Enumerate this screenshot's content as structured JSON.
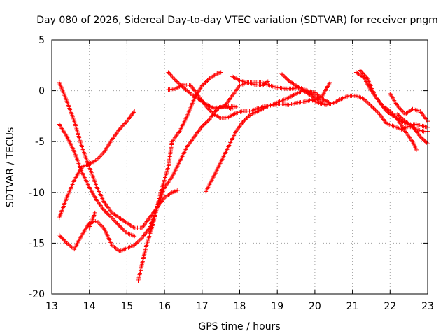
{
  "chart_data": {
    "type": "scatter",
    "title": "Day 080 of 2026, Sidereal Day-to-day VTEC variation (SDTVAR) for receiver pngm",
    "xlabel": "GPS time / hours",
    "ylabel": "SDTVAR / TECUs",
    "xlim": [
      13,
      23
    ],
    "ylim": [
      -20,
      5
    ],
    "xticks": [
      13,
      14,
      15,
      16,
      17,
      18,
      19,
      20,
      21,
      22,
      23
    ],
    "yticks": [
      5,
      0,
      -5,
      -10,
      -15,
      -20
    ],
    "grid": true,
    "marker": "plus",
    "color": "#ff0000",
    "series": [
      {
        "points": [
          [
            13.2,
            0.8
          ],
          [
            13.4,
            -1.0
          ],
          [
            13.6,
            -3.0
          ],
          [
            13.8,
            -5.5
          ],
          [
            14.0,
            -7.5
          ],
          [
            14.2,
            -9.5
          ],
          [
            14.4,
            -11.0
          ],
          [
            14.6,
            -12.0
          ],
          [
            14.8,
            -12.5
          ],
          [
            15.0,
            -13.0
          ],
          [
            15.2,
            -13.5
          ],
          [
            15.4,
            -13.5
          ],
          [
            15.6,
            -12.5
          ],
          [
            15.8,
            -11.5
          ],
          [
            16.0,
            -10.5
          ],
          [
            16.2,
            -10.0
          ],
          [
            16.35,
            -9.8
          ]
        ]
      },
      {
        "points": [
          [
            13.2,
            -3.3
          ],
          [
            13.4,
            -4.5
          ],
          [
            13.6,
            -6.0
          ],
          [
            13.8,
            -8.0
          ],
          [
            14.0,
            -9.5
          ],
          [
            14.2,
            -10.8
          ],
          [
            14.4,
            -11.8
          ],
          [
            14.6,
            -12.5
          ],
          [
            14.8,
            -13.3
          ],
          [
            15.0,
            -14.0
          ],
          [
            15.2,
            -14.3
          ]
        ]
      },
      {
        "points": [
          [
            13.2,
            -12.5
          ],
          [
            13.4,
            -10.5
          ],
          [
            13.6,
            -8.8
          ],
          [
            13.8,
            -7.5
          ],
          [
            14.0,
            -7.2
          ],
          [
            14.2,
            -6.8
          ],
          [
            14.4,
            -6.0
          ],
          [
            14.6,
            -4.8
          ],
          [
            14.8,
            -3.8
          ],
          [
            15.0,
            -3.0
          ],
          [
            15.2,
            -2.0
          ]
        ]
      },
      {
        "points": [
          [
            13.2,
            -14.2
          ],
          [
            13.4,
            -15.0
          ],
          [
            13.6,
            -15.6
          ],
          [
            13.8,
            -14.2
          ],
          [
            14.0,
            -13.0
          ],
          [
            14.2,
            -12.8
          ],
          [
            14.4,
            -13.6
          ],
          [
            14.6,
            -15.2
          ],
          [
            14.8,
            -15.8
          ],
          [
            15.0,
            -15.5
          ],
          [
            15.2,
            -15.2
          ],
          [
            15.4,
            -14.5
          ],
          [
            15.6,
            -13.5
          ],
          [
            15.7,
            -12.5
          ]
        ]
      },
      {
        "points": [
          [
            14.0,
            -13.5
          ],
          [
            14.1,
            -12.5
          ],
          [
            14.15,
            -12.0
          ]
        ]
      },
      {
        "points": [
          [
            15.3,
            -18.7
          ],
          [
            15.5,
            -15.5
          ],
          [
            15.7,
            -13.0
          ],
          [
            15.9,
            -10.0
          ],
          [
            16.1,
            -7.5
          ],
          [
            16.2,
            -5.0
          ],
          [
            16.4,
            -4.0
          ],
          [
            16.6,
            -2.5
          ],
          [
            16.8,
            -0.7
          ],
          [
            17.0,
            0.5
          ],
          [
            17.2,
            1.2
          ],
          [
            17.4,
            1.7
          ],
          [
            17.5,
            1.8
          ]
        ]
      },
      {
        "points": [
          [
            15.6,
            -14.0
          ],
          [
            15.8,
            -11.5
          ],
          [
            16.0,
            -9.5
          ],
          [
            16.2,
            -8.5
          ],
          [
            16.4,
            -7.0
          ],
          [
            16.6,
            -5.5
          ],
          [
            16.8,
            -4.5
          ],
          [
            17.0,
            -3.5
          ],
          [
            17.2,
            -2.8
          ],
          [
            17.4,
            -1.8
          ],
          [
            17.6,
            -1.5
          ],
          [
            17.8,
            -1.8
          ]
        ]
      },
      {
        "points": [
          [
            16.1,
            0.1
          ],
          [
            16.3,
            0.2
          ],
          [
            16.5,
            0.6
          ],
          [
            16.7,
            0.5
          ],
          [
            16.9,
            -0.5
          ],
          [
            17.1,
            -1.5
          ],
          [
            17.3,
            -2.3
          ],
          [
            17.5,
            -2.7
          ],
          [
            17.7,
            -2.6
          ],
          [
            17.9,
            -2.2
          ],
          [
            18.1,
            -2.0
          ],
          [
            18.3,
            -2.0
          ],
          [
            18.5,
            -1.7
          ],
          [
            18.7,
            -1.5
          ],
          [
            18.9,
            -1.4
          ],
          [
            19.1,
            -1.3
          ],
          [
            19.3,
            -1.4
          ],
          [
            19.5,
            -1.2
          ],
          [
            19.7,
            -1.1
          ],
          [
            19.9,
            -0.9
          ],
          [
            20.1,
            -1.2
          ],
          [
            20.3,
            -1.4
          ],
          [
            20.5,
            -1.2
          ],
          [
            20.7,
            -0.8
          ],
          [
            20.9,
            -0.5
          ],
          [
            21.1,
            -0.5
          ],
          [
            21.3,
            -0.8
          ],
          [
            21.5,
            -1.5
          ],
          [
            21.7,
            -2.2
          ],
          [
            21.9,
            -3.2
          ],
          [
            22.1,
            -3.5
          ],
          [
            22.3,
            -3.8
          ],
          [
            22.5,
            -3.5
          ],
          [
            22.7,
            -3.8
          ],
          [
            22.9,
            -4.0
          ],
          [
            23.0,
            -4.0
          ]
        ]
      },
      {
        "points": [
          [
            16.1,
            1.8
          ],
          [
            16.3,
            1.0
          ],
          [
            16.5,
            0.3
          ],
          [
            16.7,
            -0.3
          ],
          [
            16.9,
            -0.8
          ],
          [
            17.1,
            -1.3
          ],
          [
            17.3,
            -1.7
          ],
          [
            17.5,
            -1.6
          ],
          [
            17.7,
            -1.5
          ],
          [
            17.9,
            -1.6
          ]
        ]
      },
      {
        "points": [
          [
            17.1,
            -9.9
          ],
          [
            17.3,
            -8.5
          ],
          [
            17.5,
            -7.0
          ],
          [
            17.7,
            -5.5
          ],
          [
            17.9,
            -4.0
          ],
          [
            18.1,
            -3.0
          ],
          [
            18.3,
            -2.3
          ],
          [
            18.5,
            -2.0
          ],
          [
            18.7,
            -1.6
          ],
          [
            18.9,
            -1.3
          ],
          [
            19.1,
            -1.0
          ],
          [
            19.3,
            -0.7
          ],
          [
            19.5,
            -0.3
          ],
          [
            19.7,
            0.0
          ],
          [
            19.9,
            -0.3
          ],
          [
            20.1,
            -0.9
          ],
          [
            20.2,
            -1.2
          ]
        ]
      },
      {
        "points": [
          [
            17.6,
            -1.5
          ],
          [
            17.8,
            -0.5
          ],
          [
            18.0,
            0.5
          ],
          [
            18.2,
            0.8
          ],
          [
            18.4,
            0.8
          ],
          [
            18.6,
            0.8
          ],
          [
            18.8,
            0.5
          ],
          [
            19.0,
            0.3
          ],
          [
            19.2,
            0.2
          ],
          [
            19.4,
            0.2
          ],
          [
            19.6,
            0.3
          ],
          [
            19.8,
            0.0
          ],
          [
            20.0,
            -0.2
          ],
          [
            20.2,
            -0.8
          ],
          [
            20.4,
            -1.2
          ]
        ]
      },
      {
        "points": [
          [
            17.8,
            1.4
          ],
          [
            18.0,
            1.0
          ],
          [
            18.2,
            0.8
          ],
          [
            18.4,
            0.6
          ],
          [
            18.6,
            0.5
          ],
          [
            18.75,
            0.9
          ]
        ]
      },
      {
        "points": [
          [
            19.1,
            1.7
          ],
          [
            19.3,
            1.0
          ],
          [
            19.5,
            0.5
          ],
          [
            19.7,
            0.0
          ],
          [
            19.9,
            -0.5
          ],
          [
            20.0,
            -0.9
          ],
          [
            20.2,
            -0.5
          ],
          [
            20.4,
            0.8
          ]
        ]
      },
      {
        "points": [
          [
            21.1,
            1.8
          ],
          [
            21.3,
            1.3
          ],
          [
            21.5,
            0.0
          ],
          [
            21.7,
            -1.0
          ],
          [
            21.9,
            -2.0
          ],
          [
            22.1,
            -2.5
          ],
          [
            22.3,
            -3.0
          ],
          [
            22.5,
            -3.3
          ],
          [
            22.7,
            -3.3
          ],
          [
            22.9,
            -3.5
          ],
          [
            23.0,
            -3.6
          ]
        ]
      },
      {
        "points": [
          [
            21.2,
            2.0
          ],
          [
            21.4,
            1.2
          ],
          [
            21.6,
            -0.5
          ],
          [
            21.8,
            -1.5
          ],
          [
            22.0,
            -2.0
          ],
          [
            22.2,
            -2.8
          ],
          [
            22.4,
            -4.0
          ],
          [
            22.6,
            -5.0
          ],
          [
            22.7,
            -5.8
          ]
        ]
      },
      {
        "points": [
          [
            22.0,
            -0.3
          ],
          [
            22.2,
            -1.5
          ],
          [
            22.4,
            -2.3
          ],
          [
            22.6,
            -1.8
          ],
          [
            22.8,
            -2.0
          ],
          [
            23.0,
            -3.0
          ]
        ]
      },
      {
        "points": [
          [
            22.2,
            -2.3
          ],
          [
            22.4,
            -3.0
          ],
          [
            22.6,
            -3.5
          ],
          [
            22.8,
            -4.5
          ],
          [
            23.0,
            -5.2
          ]
        ]
      }
    ]
  }
}
